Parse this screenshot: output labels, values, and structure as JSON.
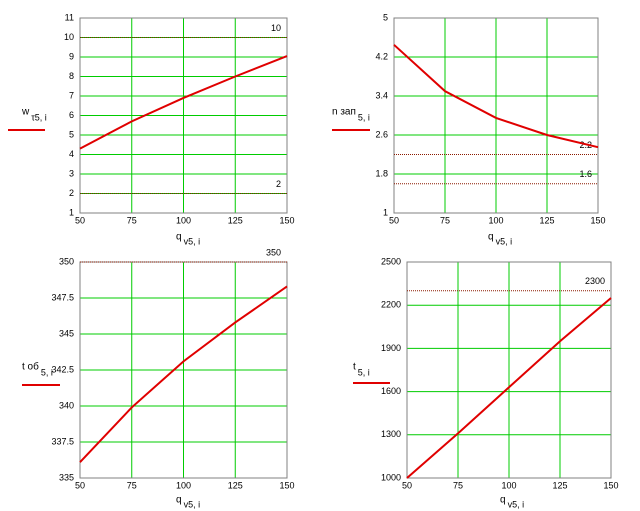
{
  "chart_data": [
    {
      "type": "line",
      "x": [
        50,
        75,
        100,
        125,
        150
      ],
      "xlim": [
        50,
        150
      ],
      "xticks": [
        50,
        75,
        100,
        125,
        150
      ],
      "ylim": [
        1,
        11
      ],
      "yticks": [
        1,
        2,
        3,
        4,
        5,
        6,
        7,
        8,
        9,
        10,
        11
      ],
      "xlabel": "q",
      "xlabel_sub": "v5, i",
      "ylabel": "w",
      "ylabel_sub": "τ5, i",
      "series": [
        {
          "color": "#e00000",
          "values": [
            4.3,
            5.7,
            6.9,
            8.0,
            9.05
          ]
        }
      ],
      "hlines": [
        10,
        2
      ],
      "hline_color": "#8b1a00",
      "grid": true,
      "grid_color": "#00cc00"
    },
    {
      "type": "line",
      "x": [
        50,
        75,
        100,
        125,
        150
      ],
      "xlim": [
        50,
        150
      ],
      "xticks": [
        50,
        75,
        100,
        125,
        150
      ],
      "ylim": [
        1,
        5
      ],
      "yticks": [
        1,
        1.8,
        2.6,
        3.4,
        4.2,
        5
      ],
      "xlabel": "q",
      "xlabel_sub": "v5, i",
      "ylabel": "n зап",
      "ylabel_sub": "5, i",
      "series": [
        {
          "color": "#e00000",
          "values": [
            4.45,
            3.5,
            2.95,
            2.6,
            2.35
          ]
        }
      ],
      "hlines": [
        2.2,
        1.6
      ],
      "hline_color": "#8b1a00",
      "grid": true,
      "grid_color": "#00cc00"
    },
    {
      "type": "line",
      "x": [
        50,
        75,
        100,
        125,
        150
      ],
      "xlim": [
        50,
        150
      ],
      "xticks": [
        50,
        75,
        100,
        125,
        150
      ],
      "ylim": [
        335,
        350
      ],
      "yticks": [
        335,
        337.5,
        340,
        342.5,
        345,
        347.5,
        350
      ],
      "xlabel": "q",
      "xlabel_sub": "v5, i",
      "ylabel": "t об",
      "ylabel_sub": "5, i",
      "series": [
        {
          "color": "#e00000",
          "values": [
            336.1,
            339.9,
            343.1,
            345.8,
            348.3
          ]
        }
      ],
      "hlines": [
        350
      ],
      "hline_color": "#8b1a00",
      "grid": true,
      "grid_color": "#00cc00"
    },
    {
      "type": "line",
      "x": [
        50,
        75,
        100,
        125,
        150
      ],
      "xlim": [
        50,
        150
      ],
      "xticks": [
        50,
        75,
        100,
        125,
        150
      ],
      "ylim": [
        1000,
        2500
      ],
      "yticks": [
        1000,
        1300,
        1600,
        1900,
        2200,
        2500
      ],
      "xlabel": "q",
      "xlabel_sub": "v5, i",
      "ylabel": "t",
      "ylabel_sub": "5, i",
      "series": [
        {
          "color": "#e00000",
          "values": [
            1000,
            1310,
            1630,
            1950,
            2250
          ]
        }
      ],
      "hlines": [
        2300
      ],
      "hline_color": "#8b1a00",
      "grid": true,
      "grid_color": "#00cc00"
    }
  ]
}
